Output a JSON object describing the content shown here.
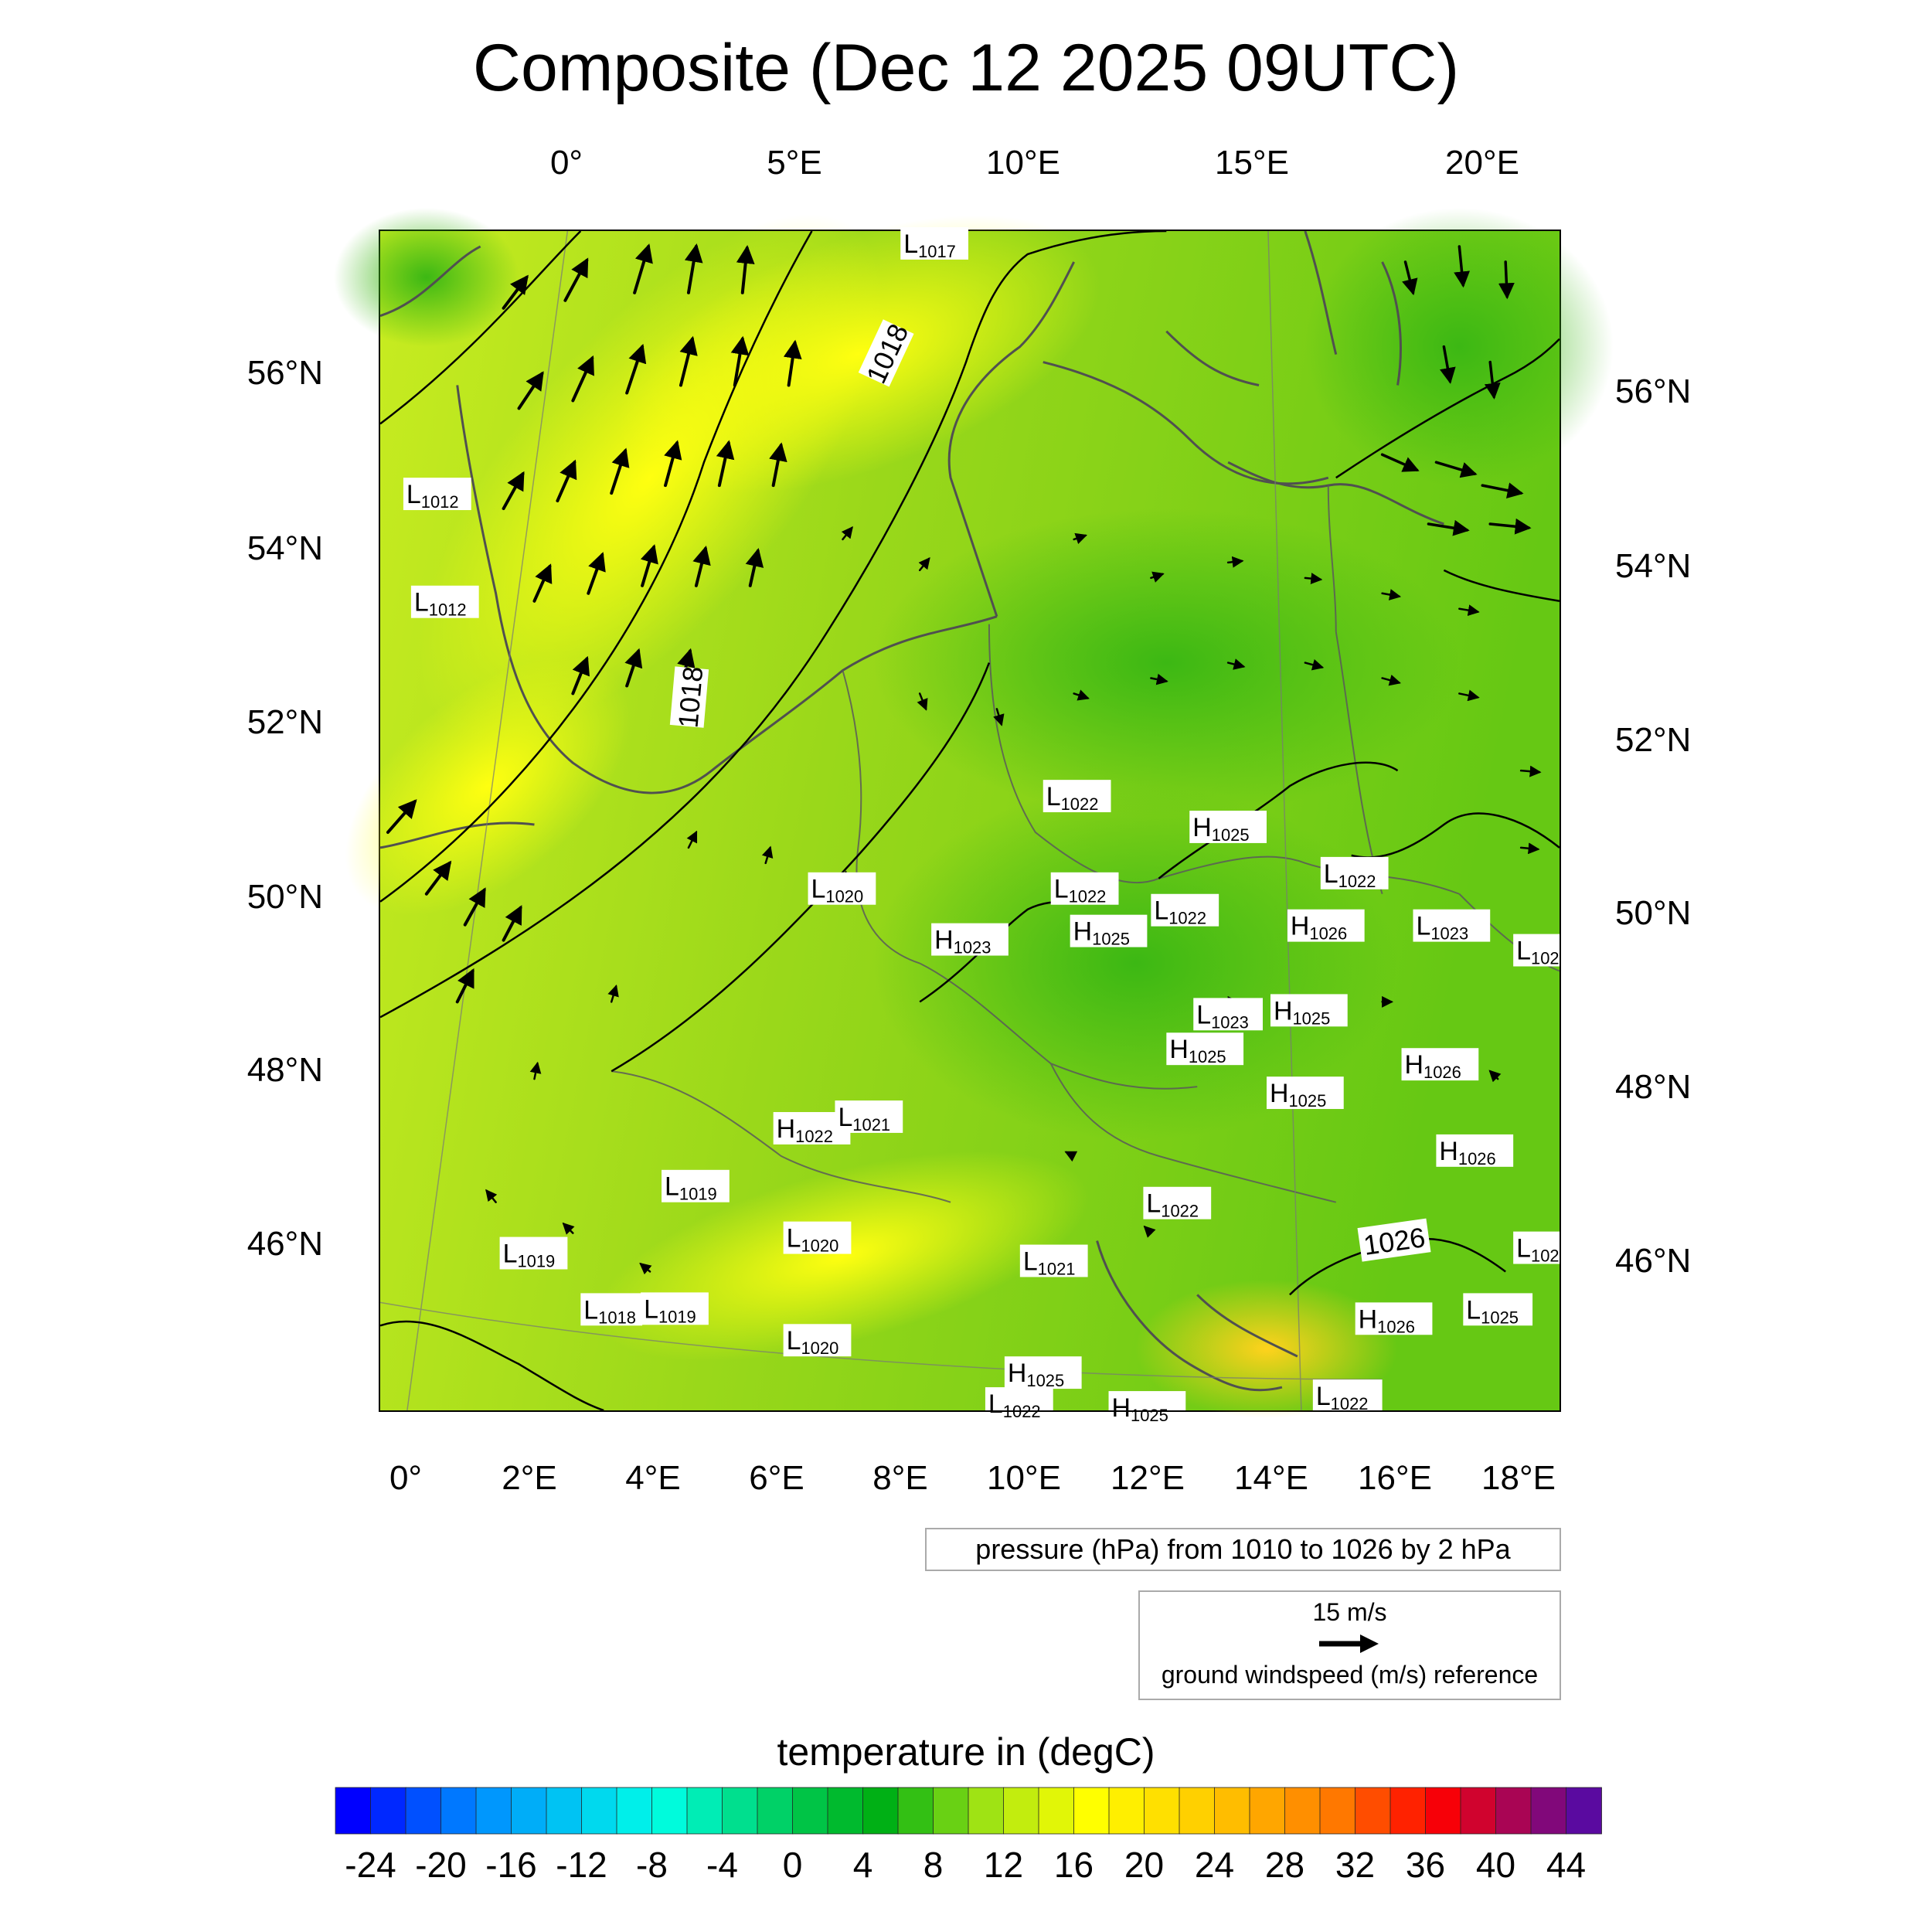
{
  "title": "Composite (Dec 12 2025 09UTC)",
  "top_lon_labels": [
    "0°",
    "5°E",
    "10°E",
    "15°E",
    "20°E"
  ],
  "bottom_lon_labels": [
    "0°",
    "2°E",
    "4°E",
    "6°E",
    "8°E",
    "10°E",
    "12°E",
    "14°E",
    "16°E",
    "18°E"
  ],
  "left_lat_labels": [
    "56°N",
    "54°N",
    "52°N",
    "50°N",
    "48°N",
    "46°N"
  ],
  "right_lat_labels": [
    "56°N",
    "54°N",
    "52°N",
    "50°N",
    "48°N",
    "46°N"
  ],
  "contour_labels": [
    "1018",
    "1018",
    "1026"
  ],
  "pressure_centers": [
    {
      "letter": "L",
      "value": "1017"
    },
    {
      "letter": "L",
      "value": "1012"
    },
    {
      "letter": "L",
      "value": "1012"
    },
    {
      "letter": "L",
      "value": "1022"
    },
    {
      "letter": "H",
      "value": "1025"
    },
    {
      "letter": "L",
      "value": "1022"
    },
    {
      "letter": "L",
      "value": "1020"
    },
    {
      "letter": "L",
      "value": "1022"
    },
    {
      "letter": "L",
      "value": "1022"
    },
    {
      "letter": "H",
      "value": "1025"
    },
    {
      "letter": "H",
      "value": "1023"
    },
    {
      "letter": "H",
      "value": "1026"
    },
    {
      "letter": "L",
      "value": "1023"
    },
    {
      "letter": "L",
      "value": "102"
    },
    {
      "letter": "L",
      "value": "1023"
    },
    {
      "letter": "H",
      "value": "1025"
    },
    {
      "letter": "H",
      "value": "1025"
    },
    {
      "letter": "H",
      "value": "1026"
    },
    {
      "letter": "H",
      "value": "1025"
    },
    {
      "letter": "H",
      "value": "1022"
    },
    {
      "letter": "L",
      "value": "1021"
    },
    {
      "letter": "H",
      "value": "1026"
    },
    {
      "letter": "L",
      "value": "1019"
    },
    {
      "letter": "L",
      "value": "1022"
    },
    {
      "letter": "L",
      "value": "1020"
    },
    {
      "letter": "L",
      "value": "1019"
    },
    {
      "letter": "L",
      "value": "1021"
    },
    {
      "letter": "L",
      "value": "102"
    },
    {
      "letter": "L",
      "value": "1018"
    },
    {
      "letter": "L",
      "value": "1019"
    },
    {
      "letter": "L",
      "value": "1025"
    },
    {
      "letter": "H",
      "value": "1026"
    },
    {
      "letter": "L",
      "value": "1020"
    },
    {
      "letter": "H",
      "value": "1025"
    },
    {
      "letter": "L",
      "value": "1022"
    },
    {
      "letter": "L",
      "value": "1022"
    },
    {
      "letter": "H",
      "value": "1025"
    }
  ],
  "pressure_note": "pressure (hPa) from 1010 to 1026 by 2 hPa",
  "wind_reference": {
    "speed": "15 m/s",
    "label": "ground windspeed (m/s) reference"
  },
  "colorbar": {
    "title": "temperature in (degC)",
    "labels": [
      "-24",
      "-20",
      "-16",
      "-12",
      "-8",
      "-4",
      "0",
      "4",
      "8",
      "12",
      "16",
      "20",
      "24",
      "28",
      "32",
      "36",
      "40",
      "44"
    ],
    "min": -26,
    "max": 46,
    "step": 2
  },
  "colors": {
    "temp_cold": "#0000ff",
    "temp_zero": "#00aa00",
    "temp_mild": "#ffff00",
    "temp_hot": "#ff0000",
    "temp_max": "#5a0aa0"
  }
}
